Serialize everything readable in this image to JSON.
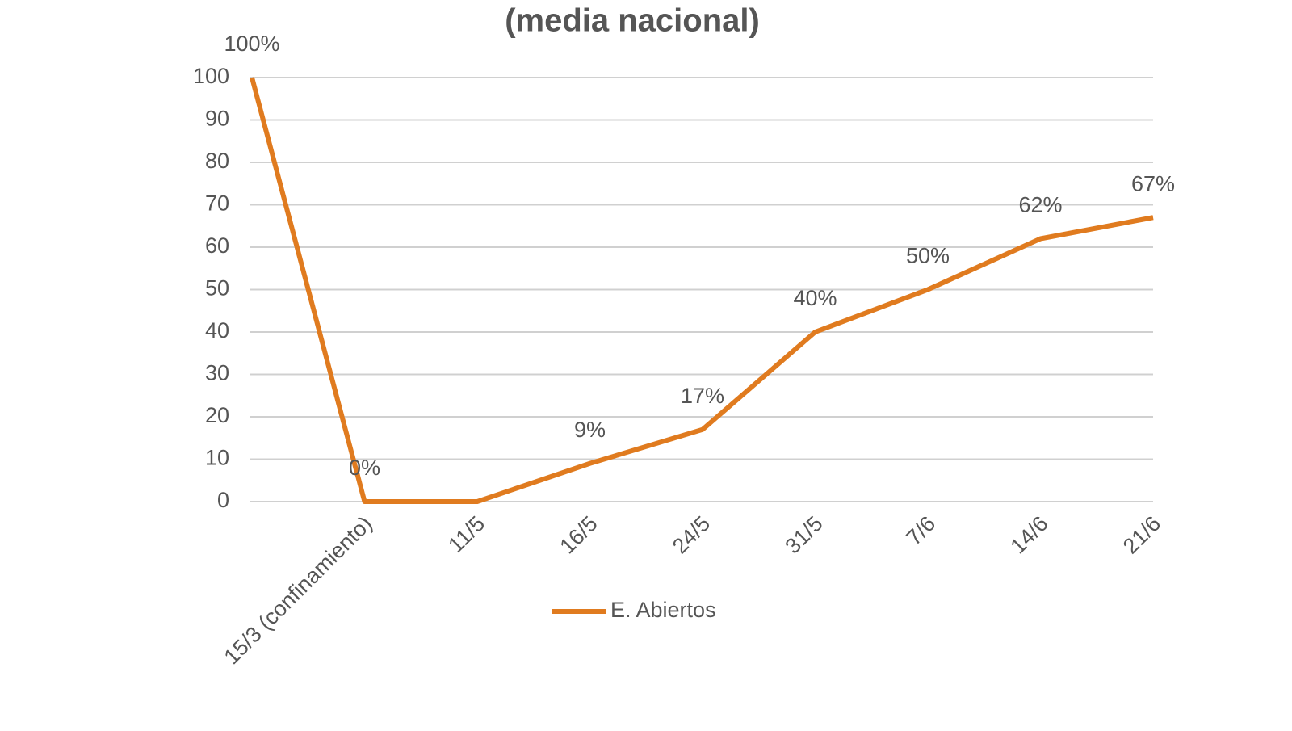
{
  "chart_data": {
    "type": "line",
    "title": "(media nacional)",
    "categories": [
      null,
      "15/3 (confinamiento)",
      "11/5",
      "16/5",
      "24/5",
      "31/5",
      "7/6",
      "14/6",
      "21/6"
    ],
    "series": [
      {
        "name": "E. Abiertos",
        "color": "#e07b1f",
        "values": [
          100,
          0,
          0,
          9,
          17,
          40,
          50,
          62,
          67
        ],
        "value_labels": [
          "100%",
          "0%",
          null,
          "9%",
          "17%",
          "40%",
          "50%",
          "62%",
          "67%"
        ]
      }
    ],
    "ylim": [
      0,
      100
    ],
    "yticks": [
      0,
      10,
      20,
      30,
      40,
      50,
      60,
      70,
      80,
      90,
      100
    ],
    "grid": true,
    "legend": "bottom"
  }
}
